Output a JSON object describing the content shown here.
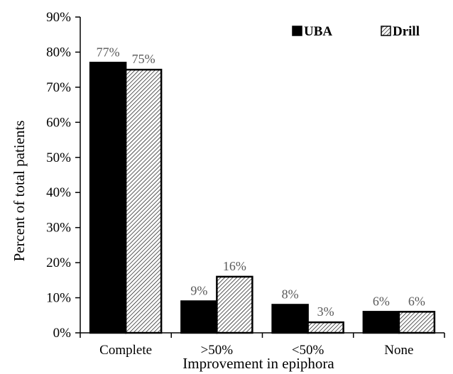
{
  "chart_data": {
    "type": "bar",
    "title": "",
    "xlabel": "Improvement in epiphora",
    "ylabel": "Percent of total patients",
    "categories": [
      "Complete",
      ">50%",
      "<50%",
      "None"
    ],
    "series": [
      {
        "name": "UBA",
        "values": [
          77,
          9,
          8,
          6
        ],
        "labels": [
          "77%",
          "9%",
          "8%",
          "6%"
        ],
        "fill": "#000000"
      },
      {
        "name": "Drill",
        "values": [
          75,
          16,
          3,
          6
        ],
        "labels": [
          "75%",
          "16%",
          "3%",
          "6%"
        ],
        "fill": "hatch"
      }
    ],
    "ylim": [
      0,
      90
    ],
    "yticks": [
      0,
      10,
      20,
      30,
      40,
      50,
      60,
      70,
      80,
      90
    ],
    "ytick_labels": [
      "0%",
      "10%",
      "20%",
      "30%",
      "40%",
      "50%",
      "60%",
      "70%",
      "80%",
      "90%"
    ],
    "grid": false,
    "legend_position": "top-right"
  }
}
